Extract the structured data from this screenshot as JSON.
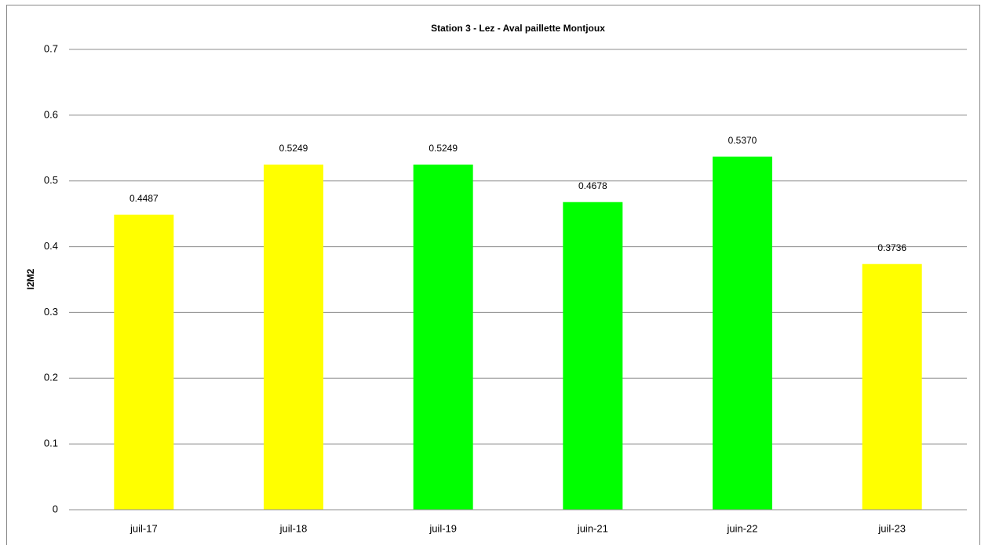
{
  "chart_data": {
    "type": "bar",
    "title": "Station 3 - Lez - Aval paillette Montjoux",
    "y_label": "I2M2",
    "categories": [
      "juil-17",
      "juil-18",
      "juil-19",
      "juin-21",
      "juin-22",
      "juil-23"
    ],
    "values": [
      0.4487,
      0.5249,
      0.5249,
      0.4678,
      0.537,
      0.3736
    ],
    "value_labels": [
      "0.4487",
      "0.5249",
      "0.5249",
      "0.4678",
      "0.5370",
      "0.3736"
    ],
    "colors": [
      "#ffff00",
      "#ffff00",
      "#00ff00",
      "#00ff00",
      "#00ff00",
      "#ffff00"
    ],
    "ylim": [
      0,
      0.7
    ],
    "yticks": [
      0,
      0.1,
      0.2,
      0.3,
      0.4,
      0.5,
      0.6,
      0.7
    ],
    "grid": true
  }
}
